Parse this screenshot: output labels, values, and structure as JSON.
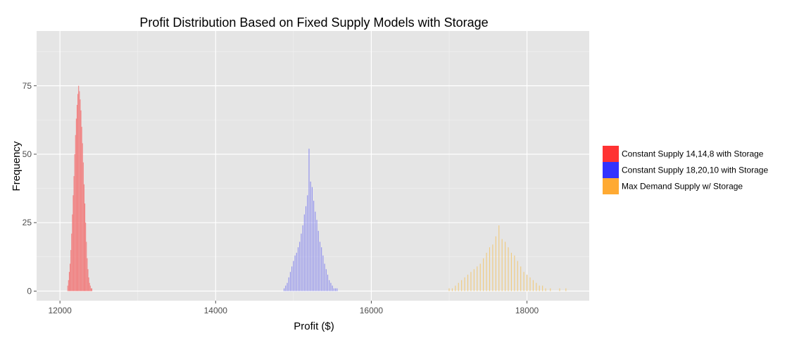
{
  "chart_data": {
    "type": "histogram",
    "title": "Profit Distribution Based on Fixed Supply Models with Storage",
    "xlabel": "Profit ($)",
    "ylabel": "Frequency",
    "xlim": [
      11700,
      18800
    ],
    "ylim": [
      -3.5,
      95
    ],
    "x_ticks": [
      12000,
      14000,
      16000,
      18000
    ],
    "y_ticks": [
      0,
      25,
      50,
      75
    ],
    "grid": true,
    "legend_position": "right",
    "background": "#e5e5e5",
    "bin_width": 10,
    "series": [
      {
        "name": "Constant Supply 14,14,8 with Storage",
        "color": "#ff3333",
        "fill": "#f08080",
        "x": [
          12100,
          12110,
          12120,
          12130,
          12140,
          12150,
          12160,
          12170,
          12180,
          12190,
          12200,
          12210,
          12220,
          12230,
          12240,
          12250,
          12260,
          12270,
          12280,
          12290,
          12300,
          12310,
          12320,
          12330,
          12340,
          12350,
          12360,
          12370,
          12380,
          12390,
          12400,
          12410
        ],
        "values": [
          2,
          4,
          7,
          10,
          15,
          21,
          28,
          35,
          42,
          50,
          57,
          63,
          68,
          72,
          75,
          73,
          70,
          66,
          60,
          54,
          47,
          39,
          32,
          25,
          18,
          12,
          8,
          5,
          3,
          2,
          1,
          1
        ]
      },
      {
        "name": "Constant Supply 18,20,10 with Storage",
        "color": "#3333ff",
        "fill": "#8888ee",
        "x": [
          14880,
          14900,
          14920,
          14940,
          14960,
          14980,
          15000,
          15020,
          15040,
          15060,
          15080,
          15100,
          15120,
          15140,
          15160,
          15180,
          15200,
          15220,
          15240,
          15260,
          15280,
          15300,
          15320,
          15340,
          15360,
          15380,
          15400,
          15420,
          15440,
          15460,
          15480,
          15500,
          15520,
          15540,
          15560
        ],
        "values": [
          1,
          2,
          3,
          5,
          7,
          9,
          11,
          13,
          14,
          16,
          18,
          21,
          24,
          28,
          31,
          35,
          52,
          40,
          38,
          33,
          29,
          26,
          22,
          18,
          16,
          13,
          10,
          8,
          6,
          4,
          3,
          2,
          1,
          1,
          1
        ]
      },
      {
        "name": "Max Demand Supply w/ Storage",
        "color": "#ffaa33",
        "fill": "#f0c878",
        "x": [
          17000,
          17040,
          17080,
          17120,
          17160,
          17200,
          17240,
          17280,
          17320,
          17360,
          17400,
          17440,
          17480,
          17520,
          17560,
          17600,
          17640,
          17680,
          17720,
          17760,
          17800,
          17840,
          17880,
          17920,
          17960,
          18000,
          18040,
          18080,
          18120,
          18160,
          18200,
          18240,
          18300,
          18420,
          18500
        ],
        "values": [
          1,
          1,
          2,
          3,
          4,
          5,
          6,
          7,
          8,
          9,
          10,
          12,
          14,
          16,
          17,
          20,
          24,
          19,
          18,
          16,
          14,
          13,
          11,
          9,
          7,
          6,
          5,
          4,
          3,
          2,
          2,
          1,
          1,
          1,
          1
        ]
      }
    ]
  }
}
